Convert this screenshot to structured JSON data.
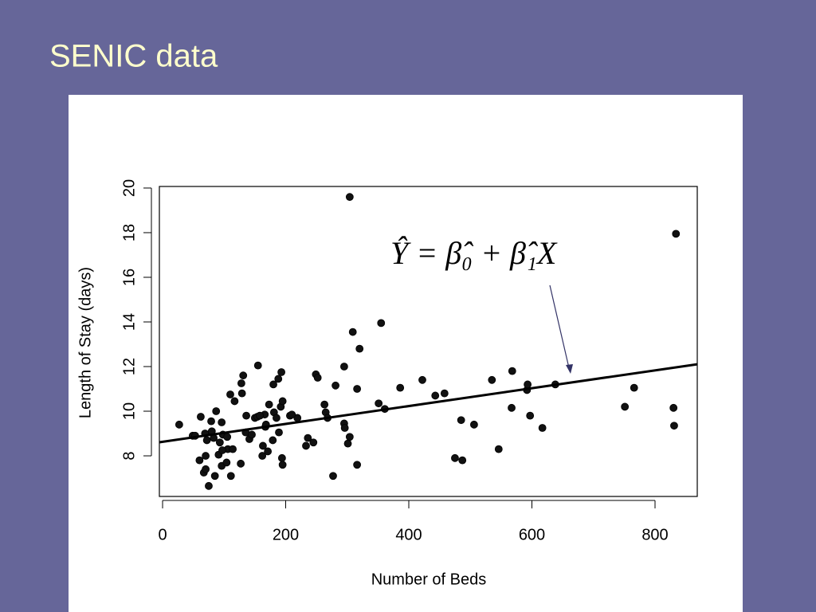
{
  "slide": {
    "title": "SENIC data"
  },
  "chart_data": {
    "type": "scatter",
    "xlabel": "Number of Beds",
    "ylabel": "Length of Stay (days)",
    "annotation": "Ŷ = β̂₀ + β̂₁X",
    "color": "#111111",
    "xlim": [
      -5.2,
      868.6
    ],
    "ylim": [
      6.18,
      20.07
    ],
    "xticks": [
      0,
      200,
      400,
      600,
      800
    ],
    "yticks": [
      8,
      10,
      12,
      14,
      16,
      18,
      20
    ],
    "fit": {
      "intercept": 8.63,
      "slope": 0.004
    },
    "x": [
      27,
      49,
      53,
      62,
      60,
      69,
      70,
      72,
      67,
      75,
      70,
      79,
      83,
      87,
      85,
      91,
      93,
      96,
      96,
      98,
      104,
      106,
      110,
      111,
      114,
      117,
      127,
      128,
      129,
      131,
      135,
      141,
      145,
      150,
      154,
      155,
      162,
      163,
      166,
      167,
      171,
      173,
      179,
      180,
      181,
      185,
      188,
      189,
      192,
      193,
      195,
      194,
      195,
      207,
      219,
      233,
      236,
      245,
      249,
      252,
      263,
      265,
      268,
      277,
      281,
      295,
      295,
      296,
      301,
      304,
      304,
      309,
      316,
      316,
      320,
      351,
      355,
      361,
      386,
      422,
      443,
      458,
      475,
      487,
      485,
      506,
      535,
      546,
      567,
      568,
      592,
      593,
      597,
      617,
      638,
      751,
      766,
      830,
      831,
      834,
      80,
      97,
      105,
      136,
      158,
      168,
      210
    ],
    "values": [
      9.4,
      8.9,
      8.9,
      9.75,
      7.8,
      9.0,
      8.0,
      8.7,
      7.25,
      6.65,
      7.4,
      9.55,
      8.8,
      10.0,
      7.1,
      8.05,
      8.6,
      9.5,
      7.55,
      8.95,
      7.7,
      8.3,
      10.75,
      7.1,
      8.3,
      10.45,
      7.65,
      11.25,
      10.8,
      11.6,
      9.05,
      8.75,
      8.95,
      9.7,
      9.75,
      12.05,
      8.0,
      8.45,
      9.85,
      9.3,
      8.2,
      10.3,
      8.7,
      11.2,
      9.95,
      9.7,
      11.45,
      9.05,
      10.2,
      11.75,
      10.45,
      7.9,
      7.6,
      9.8,
      9.7,
      8.45,
      8.8,
      8.6,
      11.65,
      11.5,
      10.3,
      9.95,
      9.7,
      7.1,
      11.15,
      12.0,
      9.45,
      9.25,
      8.55,
      8.85,
      19.6,
      13.55,
      11.0,
      7.6,
      12.8,
      10.35,
      13.95,
      10.1,
      11.05,
      11.4,
      10.7,
      10.8,
      7.9,
      7.8,
      9.6,
      9.4,
      11.4,
      8.3,
      10.15,
      11.8,
      10.95,
      11.2,
      9.8,
      9.25,
      11.2,
      10.2,
      11.05,
      10.15,
      9.35,
      17.95,
      9.1,
      8.25,
      8.85,
      9.8,
      9.8,
      9.4,
      9.85
    ]
  }
}
